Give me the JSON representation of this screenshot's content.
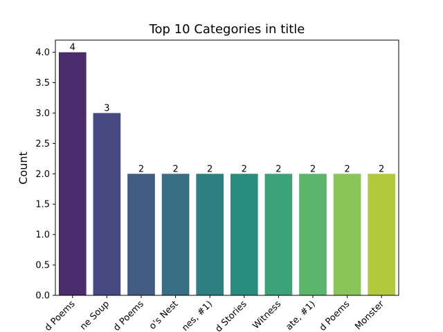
{
  "chart_data": {
    "type": "bar",
    "title": "Top 10 Categories in title",
    "xlabel": "",
    "ylabel": "Count",
    "categories": [
      "d Poems",
      "ne Soup",
      "d Poems",
      "o's Nest",
      "nes, #1)",
      "d Stories",
      "Witness",
      "ate, #1)",
      "d Poems",
      "Monster"
    ],
    "values": [
      4,
      3,
      2,
      2,
      2,
      2,
      2,
      2,
      2,
      2
    ],
    "data_labels": [
      "4",
      "3",
      "2",
      "2",
      "2",
      "2",
      "2",
      "2",
      "2",
      "2"
    ],
    "ylim": [
      0,
      4.2
    ],
    "yticks": [
      "0.0",
      "0.5",
      "1.0",
      "1.5",
      "2.0",
      "2.5",
      "3.0",
      "3.5",
      "4.0"
    ],
    "ytick_values": [
      0,
      0.5,
      1.0,
      1.5,
      2.0,
      2.5,
      3.0,
      3.5,
      4.0
    ],
    "grid": false,
    "bar_colors": [
      "#482c6b",
      "#474a80",
      "#425c84",
      "#386e84",
      "#2f7f81",
      "#2a8c7c",
      "#3ba27a",
      "#5cb56c",
      "#89c558",
      "#b2c93c"
    ]
  }
}
